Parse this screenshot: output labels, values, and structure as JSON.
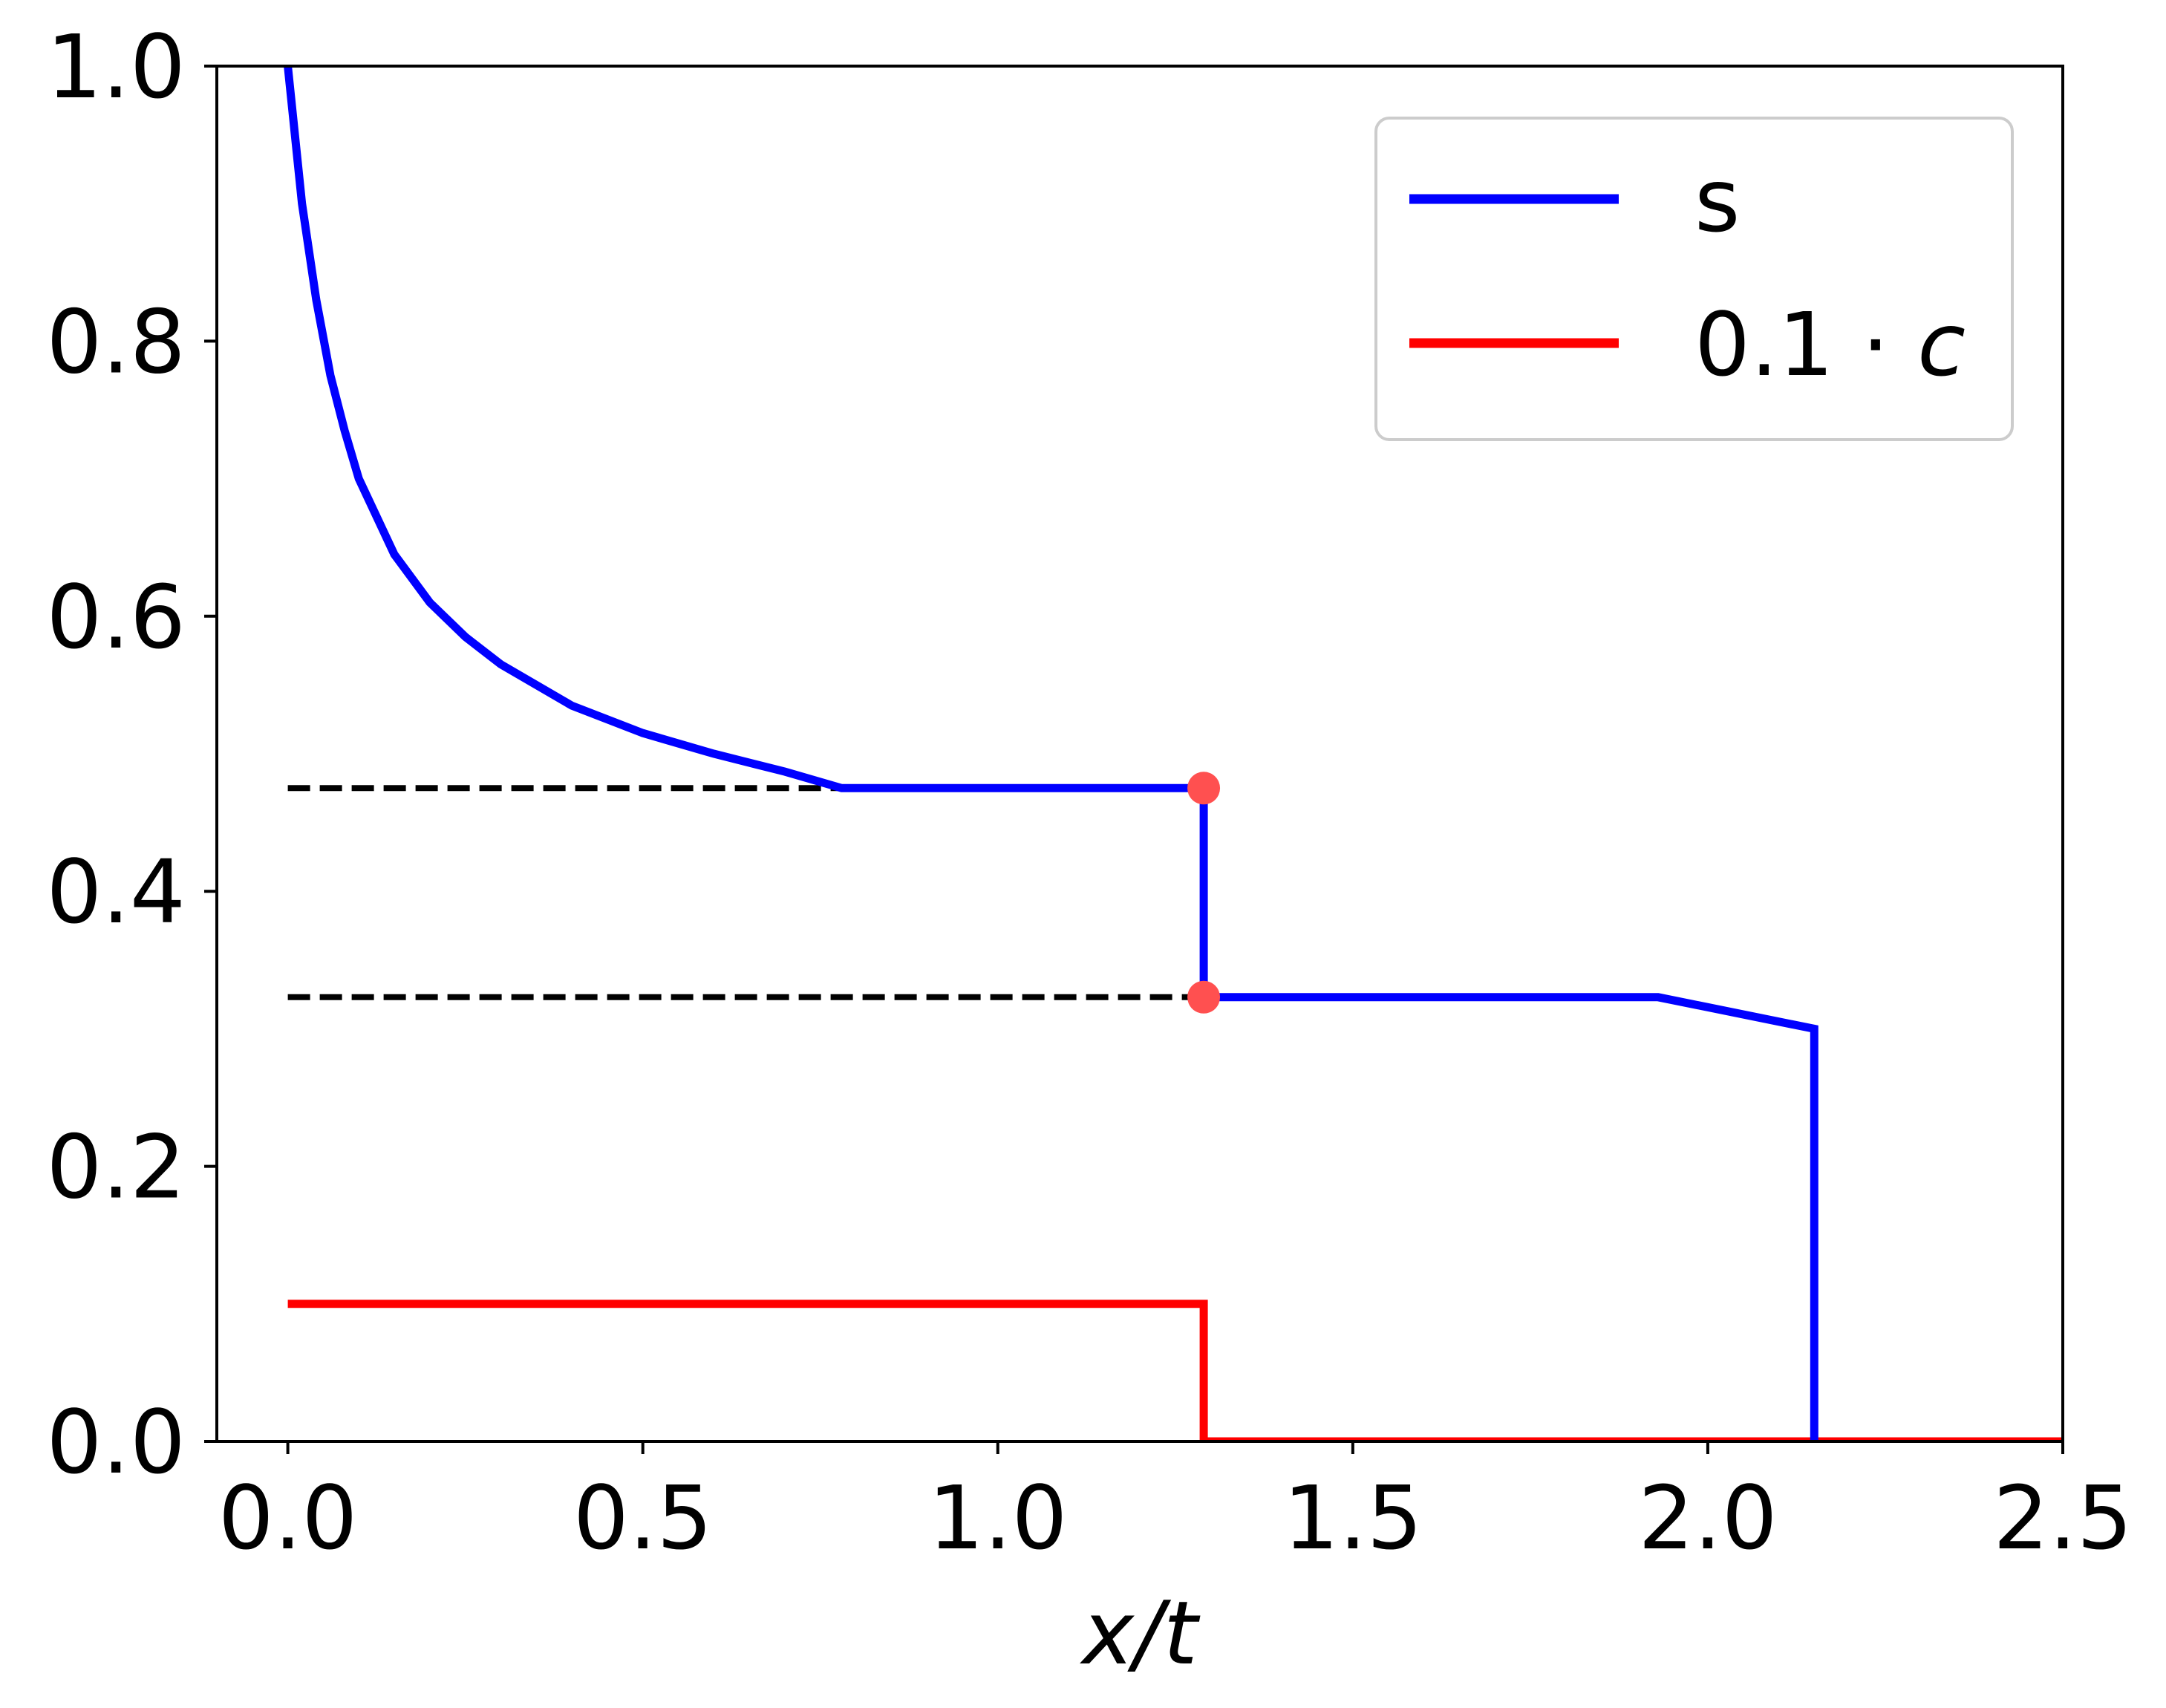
{
  "chart_data": {
    "type": "line",
    "xlabel_main": "x/t",
    "xlim": [
      -0.1,
      2.5
    ],
    "ylim": [
      0.0,
      1.0
    ],
    "grid": false,
    "legend_placement": "top-right",
    "x_ticks": [
      "0.0",
      "0.5",
      "1.0",
      "1.5",
      "2.0",
      "2.5"
    ],
    "x_tick_values": [
      0.0,
      0.5,
      1.0,
      1.5,
      2.0,
      2.5
    ],
    "y_ticks": [
      "0.0",
      "0.2",
      "0.4",
      "0.6",
      "0.8",
      "1.0"
    ],
    "y_tick_values": [
      0.0,
      0.2,
      0.4,
      0.6,
      0.8,
      1.0
    ],
    "series": [
      {
        "name": "s",
        "color": "#0000ff",
        "points": [
          [
            0.0,
            1.0
          ],
          [
            0.02,
            0.9
          ],
          [
            0.04,
            0.83
          ],
          [
            0.06,
            0.775
          ],
          [
            0.08,
            0.735
          ],
          [
            0.1,
            0.7
          ],
          [
            0.15,
            0.645
          ],
          [
            0.2,
            0.61
          ],
          [
            0.25,
            0.585
          ],
          [
            0.3,
            0.565
          ],
          [
            0.4,
            0.535
          ],
          [
            0.5,
            0.515
          ],
          [
            0.6,
            0.5
          ],
          [
            0.7,
            0.487
          ],
          [
            0.78,
            0.475
          ],
          [
            1.29,
            0.475
          ],
          [
            1.29,
            0.323
          ],
          [
            1.93,
            0.323
          ],
          [
            2.15,
            0.3
          ],
          [
            2.15,
            0.0
          ]
        ]
      },
      {
        "name": "0.1 · c",
        "color": "#ff0000",
        "points": [
          [
            0.0,
            0.1
          ],
          [
            1.29,
            0.1
          ],
          [
            1.29,
            0.0
          ],
          [
            2.5,
            0.0
          ]
        ]
      }
    ],
    "reference_lines": [
      {
        "style": "dashed",
        "color": "#000000",
        "x": [
          0.0,
          0.78
        ],
        "y": 0.475
      },
      {
        "style": "dashed",
        "color": "#000000",
        "x": [
          0.0,
          1.29
        ],
        "y": 0.323
      }
    ],
    "markers": [
      {
        "x": 1.29,
        "y": 0.475,
        "color": "#ff5050"
      },
      {
        "x": 1.29,
        "y": 0.323,
        "color": "#ff5050"
      }
    ],
    "legend": {
      "entries": [
        {
          "label_main": "s",
          "label_italic": "",
          "color": "#0000ff"
        },
        {
          "label_main": "0.1 · ",
          "label_italic": "c",
          "color": "#ff0000"
        }
      ]
    }
  }
}
